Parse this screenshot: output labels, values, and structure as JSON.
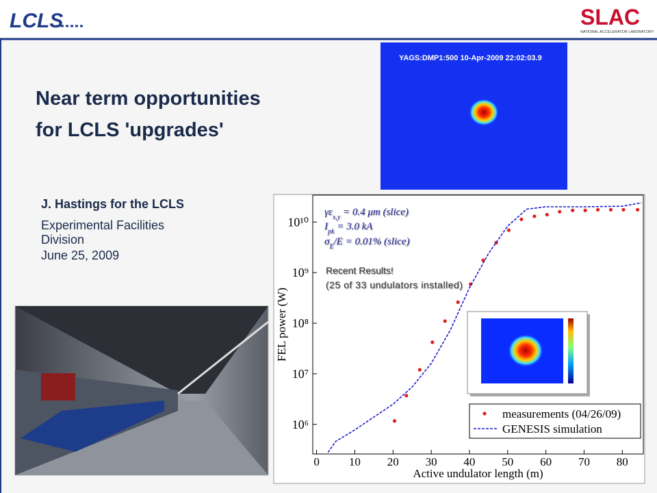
{
  "header": {
    "logo_left": "LCLS",
    "logo_right": "SLAC",
    "logo_right_sub": "NATIONAL ACCELERATOR LABORATORY"
  },
  "title": [
    "Near term opportunities",
    "for LCLS 'upgrades'"
  ],
  "author": "J. Hastings for the LCLS",
  "affiliation": [
    "Experimental Facilities",
    "Division"
  ],
  "date": "June 25, 2009",
  "beam_image": {
    "caption": "YAGS:DMP1:500 10-Apr-2009 22:02:03.9"
  },
  "chart_data": {
    "type": "scatter",
    "xlabel": "Active undulator length (m)",
    "ylabel": "FEL power (W)",
    "annotations": [
      "γε",
      "x,y",
      " = 0.4 μm (slice)",
      "I",
      "pk",
      " = 3.0 kA",
      "σ",
      "E",
      "/E = 0.01% (slice)",
      "Recent Results!",
      "(25 of 33 undulators installed)"
    ],
    "log_y": true,
    "xlim": [
      -1,
      85.5
    ],
    "ylim": [
      260000,
      34000000000
    ],
    "xticks": [
      0,
      10,
      20,
      30,
      40,
      50,
      60,
      70,
      80
    ],
    "yticks": [
      {
        "value": 1000000,
        "label": "10⁶"
      },
      {
        "value": 10000000,
        "label": "10⁷"
      },
      {
        "value": 100000000,
        "label": "10⁸"
      },
      {
        "value": 1000000000,
        "label": "10⁹"
      },
      {
        "value": 10000000000,
        "label": "10¹⁰"
      }
    ],
    "legend_position": "lower right",
    "series": [
      {
        "name": "measurements (04/26/09)",
        "color": "#e0201c",
        "style": "markers",
        "x": [
          20.4,
          23.5,
          27,
          30.3,
          33.6,
          37,
          40.3,
          43.6,
          47,
          50.3,
          53.6,
          57,
          60.3,
          63.6,
          67,
          70.3,
          73.6,
          77,
          80.3,
          84
        ],
        "values": [
          1170000,
          3700000,
          12000000,
          42000000,
          110000000,
          260000000,
          590000000,
          1750000000,
          3900000000,
          6900000000,
          11300000000,
          13000000000,
          14000000000,
          16000000000,
          17000000000,
          17000000000,
          17500000000,
          17500000000,
          17500000000,
          17500000000
        ]
      },
      {
        "name": "GENESIS simulation",
        "color": "#1a1acc",
        "style": "dashed",
        "x": [
          3,
          5,
          10,
          15,
          20,
          25,
          30,
          35,
          40,
          45,
          50,
          55,
          60,
          70,
          80,
          85
        ],
        "values": [
          280000,
          460000,
          780000,
          1400000,
          2500000,
          5500000,
          16000000,
          73000000,
          500000000,
          2400000000,
          8300000000,
          18000000000,
          20000000000,
          20000000000,
          20500000000,
          24000000000
        ]
      }
    ]
  }
}
